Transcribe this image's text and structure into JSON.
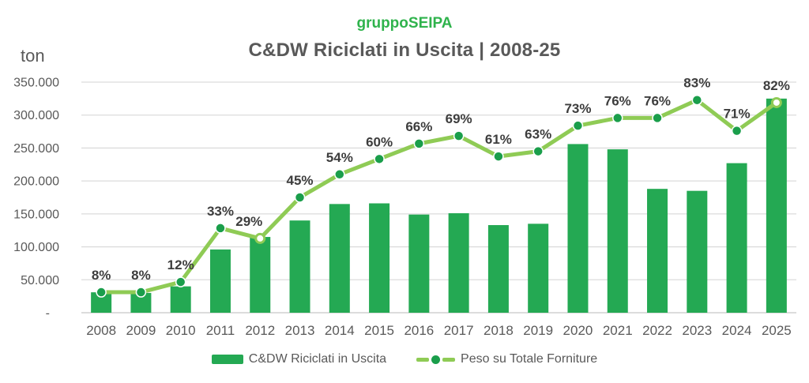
{
  "header": {
    "brand": "gruppoSEIPA",
    "title": "C&DW Riciclati in Uscita | 2008-25",
    "y_axis_unit": "ton"
  },
  "chart_data": {
    "type": "combo-bar-line",
    "title": "C&DW Riciclati in Uscita | 2008-25",
    "ylabel": "ton",
    "grid": true,
    "legend_position": "bottom",
    "categories": [
      "2008",
      "2009",
      "2010",
      "2011",
      "2012",
      "2013",
      "2014",
      "2015",
      "2016",
      "2017",
      "2018",
      "2019",
      "2020",
      "2021",
      "2022",
      "2023",
      "2024",
      "2025"
    ],
    "series": [
      {
        "name": "C&DW Riciclati in Uscita",
        "type": "bar",
        "axis": "primary",
        "values": [
          31000,
          30000,
          40000,
          96000,
          115000,
          140000,
          165000,
          166000,
          149000,
          151000,
          133000,
          135000,
          256000,
          248000,
          188000,
          185000,
          227000,
          325000
        ]
      },
      {
        "name": "Peso su Totale Forniture",
        "type": "line",
        "axis": "secondary",
        "values_pct": [
          8,
          8,
          12,
          33,
          29,
          45,
          54,
          60,
          66,
          69,
          61,
          63,
          73,
          76,
          76,
          83,
          71,
          82
        ],
        "point_labels": [
          "8%",
          "8%",
          "12%",
          "33%",
          "29%",
          "45%",
          "54%",
          "60%",
          "66%",
          "69%",
          "61%",
          "63%",
          "73%",
          "76%",
          "76%",
          "83%",
          "71%",
          "82%"
        ]
      }
    ],
    "y_axis": {
      "min": 0,
      "max": 350000,
      "step": 50000,
      "tick_labels_top_to_bottom": [
        "350.000",
        "300.000",
        "250.000",
        "200.000",
        "150.000",
        "100.000",
        "50.000",
        "-"
      ]
    },
    "secondary_axis": {
      "min": 0,
      "max": 90,
      "labels_visible": false
    }
  },
  "legend": {
    "items": [
      {
        "label": "C&DW Riciclati in Uscita"
      },
      {
        "label": "Peso su Totale Forniture"
      }
    ]
  },
  "colors": {
    "bar_green": "#24A953",
    "line_green": "#8FCB55",
    "marker_green": "#1A9E4B",
    "brand_green": "#2FB34C",
    "title_gray": "#595959",
    "axis_label_gray": "#595959",
    "point_label_dark": "#3D3D3D",
    "gridline": "#DCDCDC",
    "baseline": "#C6C6C6"
  }
}
